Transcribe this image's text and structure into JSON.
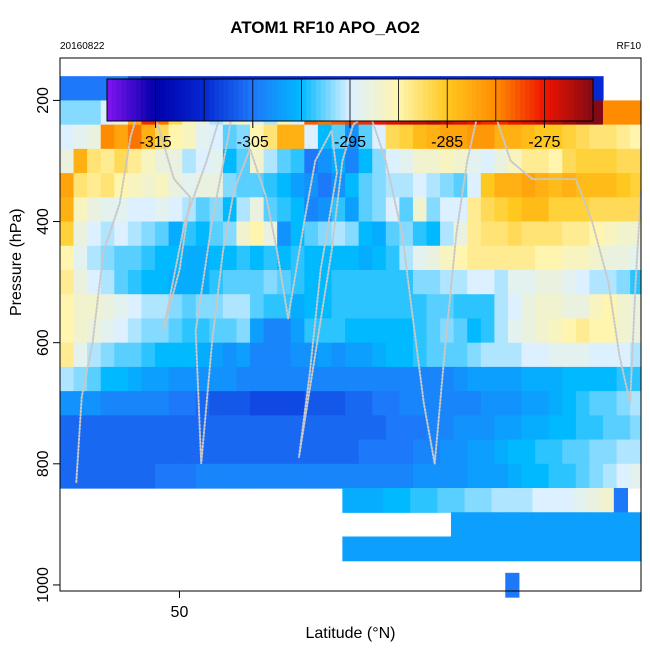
{
  "chart_data": {
    "type": "heatmap",
    "title": "ATOM1 RF10 APO_AO2",
    "date": "20160822",
    "flight": "RF10",
    "xlabel": "Latitude (°N)",
    "ylabel": "Pressure (hPa)",
    "xlim": [
      47.8,
      58.5
    ],
    "ylim": [
      1010,
      130
    ],
    "x_ticks": [
      50
    ],
    "x_tick_labels": [
      "50"
    ],
    "y_ticks": [
      200,
      400,
      600,
      800,
      1000
    ],
    "y_tick_labels": [
      "200",
      "400",
      "600",
      "800",
      "1000"
    ],
    "grid": false,
    "colorbar": {
      "range": [
        -320,
        -270
      ],
      "ticks": [
        -315,
        -305,
        -295,
        -285,
        -275
      ],
      "tick_labels": [
        "-315",
        "-305",
        "-295",
        "-285",
        "-275"
      ],
      "placement": "top-inside"
    },
    "cell_width_deg": 0.25,
    "cell_height_hpa": 40,
    "strips": [
      {
        "p": 180,
        "lat_start": 47.8,
        "values": [
          -305,
          -305,
          -305,
          -305,
          -305,
          -308,
          -310,
          -310,
          -310,
          -310,
          -310,
          -310,
          -310,
          -310,
          -310,
          -310,
          -310,
          -310,
          -310,
          -310,
          -310,
          -310,
          -310,
          -310,
          -310,
          -310,
          -310,
          -310,
          -310,
          -310,
          -310,
          -310,
          -310,
          -310,
          -310,
          -310,
          -310,
          -310,
          -310,
          -310
        ]
      },
      {
        "p": 220,
        "lat_start": 47.8,
        "values": [
          -297,
          -297,
          -297,
          -295,
          -293,
          -283,
          -276,
          -279,
          -287,
          -291,
          -293,
          -296,
          -293,
          -291,
          -294,
          -296,
          -291,
          -295,
          -278,
          -279,
          -278,
          -277,
          -276,
          -275,
          -274,
          -273,
          -273,
          -272,
          -273,
          -274,
          -275,
          -276,
          -276,
          -275,
          -274,
          -273,
          -272,
          -271,
          -270,
          -270,
          -280,
          -280,
          -280,
          -280,
          -280,
          -280,
          -280,
          -280,
          -280,
          -280
        ]
      },
      {
        "p": 260,
        "lat_start": 47.8,
        "values": [
          -295,
          -294,
          -293,
          -280,
          -282,
          -279,
          -283,
          -287,
          -290,
          -291,
          -294,
          -295,
          -298,
          -297,
          -290,
          -288,
          -283,
          -283,
          -295,
          -300,
          -298,
          -303,
          -298,
          -295,
          -287,
          -286,
          -284,
          -283,
          -282,
          -282,
          -281,
          -281,
          -283,
          -283,
          -284,
          -285,
          -285,
          -286,
          -287,
          -288,
          -288,
          -289,
          -290,
          -291,
          -292
        ]
      },
      {
        "p": 300,
        "lat_start": 47.8,
        "values": [
          -293,
          -283,
          -288,
          -289,
          -287,
          -289,
          -291,
          -293,
          -293,
          -296,
          -295,
          -294,
          -300,
          -298,
          -292,
          -296,
          -298,
          -299,
          -305,
          -303,
          -301,
          -304,
          -300,
          -297,
          -295,
          -294,
          -292,
          -292,
          -291,
          -292,
          -294,
          -295,
          -293,
          -291,
          -289,
          -289,
          -290,
          -287,
          -286,
          -286,
          -286,
          -287,
          -287,
          -289,
          -288
        ]
      },
      {
        "p": 340,
        "lat_start": 47.8,
        "values": [
          -282,
          -288,
          -289,
          -288,
          -290,
          -291,
          -292,
          -291,
          -293,
          -294,
          -293,
          -293,
          -297,
          -298,
          -298,
          -299,
          -300,
          -302,
          -303,
          -305,
          -303,
          -300,
          -298,
          -297,
          -296,
          -296,
          -295,
          -296,
          -297,
          -298,
          -295,
          -285,
          -283,
          -283,
          -282,
          -283,
          -284,
          -283,
          -284,
          -284,
          -284,
          -285,
          -286,
          -286,
          -286
        ]
      },
      {
        "p": 380,
        "lat_start": 47.8,
        "values": [
          -283,
          -291,
          -293,
          -294,
          -294,
          -295,
          -295,
          -294,
          -295,
          -296,
          -298,
          -297,
          -300,
          -296,
          -293,
          -298,
          -299,
          -300,
          -304,
          -303,
          -299,
          -302,
          -298,
          -297,
          -295,
          -298,
          -292,
          -297,
          -295,
          -295,
          -289,
          -287,
          -286,
          -285,
          -284,
          -284,
          -286,
          -286,
          -286,
          -287,
          -287,
          -287,
          -287,
          -288,
          -287
        ]
      },
      {
        "p": 420,
        "lat_start": 47.8,
        "values": [
          -286,
          -293,
          -295,
          -296,
          -295,
          -296,
          -297,
          -298,
          -301,
          -299,
          -300,
          -298,
          -297,
          -292,
          -290,
          -293,
          -303,
          -300,
          -298,
          -297,
          -296,
          -297,
          -300,
          -301,
          -298,
          -297,
          -299,
          -300,
          -296,
          -293,
          -289,
          -288,
          -288,
          -287,
          -288,
          -288,
          -288,
          -289,
          -289,
          -290,
          -291,
          -292,
          -292,
          -293,
          -300
        ]
      },
      {
        "p": 460,
        "lat_start": 47.8,
        "values": [
          -290,
          -294,
          -296,
          -297,
          -298,
          -298,
          -299,
          -300,
          -300,
          -301,
          -301,
          -300,
          -300,
          -299,
          -300,
          -299,
          -300,
          -299,
          -300,
          -300,
          -300,
          -300,
          -301,
          -300,
          -299,
          -296,
          -294,
          -293,
          -291,
          -290,
          -289,
          -289,
          -289,
          -289,
          -289,
          -290,
          -290,
          -291,
          -291,
          -292,
          -293,
          -293,
          -294,
          -295,
          -290
        ]
      },
      {
        "p": 500,
        "lat_start": 47.8,
        "values": [
          -289,
          -293,
          -295,
          -296,
          -298,
          -299,
          -300,
          -300,
          -301,
          -301,
          -301,
          -299,
          -298,
          -298,
          -298,
          -297,
          -298,
          -299,
          -300,
          -300,
          -299,
          -299,
          -299,
          -299,
          -299,
          -299,
          -297,
          -297,
          -296,
          -296,
          -295,
          -295,
          -296,
          -294,
          -294,
          -293,
          -293,
          -294,
          -295,
          -296,
          -296,
          -297,
          -299,
          -300,
          -292
        ]
      },
      {
        "p": 540,
        "lat_start": 47.8,
        "values": [
          -290,
          -292,
          -292,
          -293,
          -294,
          -295,
          -296,
          -296,
          -297,
          -298,
          -297,
          -297,
          -296,
          -296,
          -298,
          -299,
          -299,
          -301,
          -300,
          -300,
          -299,
          -299,
          -299,
          -299,
          -299,
          -299,
          -299,
          -298,
          -298,
          -299,
          -299,
          -299,
          -296,
          -295,
          -293,
          -292,
          -292,
          -293,
          -293,
          -291,
          -290,
          -292,
          -293,
          -294,
          -296
        ]
      },
      {
        "p": 580,
        "lat_start": 47.8,
        "values": [
          -290,
          -292,
          -293,
          -294,
          -295,
          -296,
          -297,
          -297,
          -298,
          -299,
          -299,
          -298,
          -298,
          -297,
          -302,
          -304,
          -304,
          -302,
          -299,
          -299,
          -299,
          -300,
          -300,
          -300,
          -300,
          -300,
          -299,
          -298,
          -297,
          -298,
          -300,
          -299,
          -296,
          -294,
          -293,
          -292,
          -291,
          -290,
          -289,
          -290,
          -290,
          -292,
          -293,
          -295,
          -296
        ]
      },
      {
        "p": 620,
        "lat_start": 47.8,
        "values": [
          -289,
          -294,
          -296,
          -297,
          -298,
          -298,
          -299,
          -300,
          -300,
          -300,
          -301,
          -302,
          -303,
          -302,
          -304,
          -304,
          -304,
          -303,
          -303,
          -302,
          -303,
          -302,
          -302,
          -301,
          -300,
          -300,
          -299,
          -298,
          -298,
          -298,
          -297,
          -296,
          -296,
          -296,
          -295,
          -295,
          -294,
          -294,
          -294,
          -295,
          -295,
          -295,
          -296,
          -300,
          -302
        ]
      },
      {
        "p": 660,
        "lat_start": 47.8,
        "values": [
          -296,
          -297,
          -298,
          -300,
          -300,
          -301,
          -302,
          -302,
          -303,
          -303,
          -303,
          -303,
          -303,
          -304,
          -304,
          -304,
          -304,
          -304,
          -304,
          -304,
          -304,
          -304,
          -304,
          -304,
          -304,
          -304,
          -304,
          -304,
          -304,
          -303,
          -302,
          -302,
          -302,
          -302,
          -301,
          -301,
          -301,
          -300,
          -300,
          -300,
          -300,
          -299,
          -299,
          -303,
          -310
        ]
      },
      {
        "p": 700,
        "lat_start": 47.8,
        "values": [
          -303,
          -303,
          -303,
          -304,
          -304,
          -304,
          -304,
          -304,
          -305,
          -305,
          -306,
          -307,
          -307,
          -307,
          -308,
          -308,
          -308,
          -308,
          -307,
          -307,
          -307,
          -306,
          -306,
          -305,
          -305,
          -304,
          -304,
          -304,
          -304,
          -304,
          -304,
          -303,
          -303,
          -303,
          -302,
          -302,
          -301,
          -300,
          -299,
          -298,
          -298,
          -297,
          -296,
          -304,
          -318
        ]
      },
      {
        "p": 740,
        "lat_start": 47.8,
        "values": [
          -306,
          -306,
          -306,
          -306,
          -306,
          -306,
          -306,
          -306,
          -306,
          -306,
          -306,
          -306,
          -306,
          -306,
          -306,
          -306,
          -306,
          -306,
          -306,
          -306,
          -306,
          -306,
          -306,
          -306,
          -305,
          -305,
          -305,
          -304,
          -304,
          -303,
          -303,
          -303,
          -302,
          -302,
          -301,
          -301,
          -300,
          -300,
          -299,
          -299,
          -298,
          -298,
          -297,
          -304,
          -310
        ]
      },
      {
        "p": 780,
        "lat_start": 47.8,
        "values": [
          -306,
          -306,
          -306,
          -306,
          -306,
          -306,
          -306,
          -306,
          -306,
          -306,
          -306,
          -306,
          -306,
          -306,
          -306,
          -306,
          -306,
          -306,
          -306,
          -306,
          -306,
          -306,
          -305,
          -305,
          -305,
          -305,
          -304,
          -304,
          -303,
          -303,
          -302,
          -302,
          -301,
          -300,
          -300,
          -299,
          -299,
          -298,
          -298,
          -297,
          -297,
          -296,
          -296,
          -303,
          -308
        ]
      },
      {
        "p": 820,
        "lat_start": 47.8,
        "values": [
          -306,
          -306,
          -306,
          -306,
          -306,
          -306,
          -306,
          -305,
          -305,
          -305,
          -304,
          -304,
          -304,
          -304,
          -304,
          -304,
          -304,
          -304,
          -304,
          -304,
          -304,
          -304,
          -304,
          -304,
          -304,
          -304,
          -303,
          -303,
          -303,
          -303,
          -302,
          -302,
          -302,
          -301,
          -300,
          -300,
          -299,
          -299,
          -298,
          -297,
          -296,
          -295,
          -294,
          -298,
          -306
        ]
      },
      {
        "p": 860,
        "lat_start": 53.0,
        "values": [
          -301,
          -301,
          -301,
          -300,
          -300,
          -299,
          -299,
          -298,
          -298,
          -297,
          -297,
          -296,
          -296,
          -296,
          -295,
          -295,
          -295,
          -294,
          -293,
          -292,
          -305
        ]
      },
      {
        "p": 900,
        "lat_start": 55.0,
        "values": [
          -302,
          -302,
          -302,
          -302,
          -302,
          -302,
          -302,
          -302,
          -302,
          -302,
          -302,
          -302,
          -302,
          -302,
          -302,
          -302,
          -302,
          -302,
          -302,
          -302,
          -302,
          -302
        ]
      },
      {
        "p": 940,
        "lat_start": 53.0,
        "values": [
          -302,
          -302,
          -302,
          -302,
          -302,
          -302,
          -302,
          -302,
          -302,
          -302,
          -302,
          -302,
          -302,
          -302,
          -302,
          -302,
          -302,
          -302,
          -302,
          -302,
          -302,
          -302,
          -302,
          -302
        ]
      },
      {
        "p": 1000,
        "lat_start": 56.0,
        "values": [
          -305
        ]
      }
    ],
    "flight_track": [
      [
        48.1,
        830
      ],
      [
        48.2,
        690
      ],
      [
        48.4,
        600
      ],
      [
        48.6,
        450
      ],
      [
        48.9,
        370
      ],
      [
        49.1,
        260
      ],
      [
        49.3,
        200
      ],
      [
        49.6,
        240
      ],
      [
        49.9,
        330
      ],
      [
        50.2,
        360
      ],
      [
        50.0,
        480
      ],
      [
        49.7,
        580
      ],
      [
        50.1,
        400
      ],
      [
        50.5,
        300
      ],
      [
        50.8,
        210
      ],
      [
        51.0,
        200
      ],
      [
        50.9,
        260
      ],
      [
        50.6,
        400
      ],
      [
        50.3,
        580
      ],
      [
        50.4,
        800
      ],
      [
        50.6,
        600
      ],
      [
        50.8,
        450
      ],
      [
        51.0,
        350
      ],
      [
        51.3,
        280
      ],
      [
        51.6,
        360
      ],
      [
        51.8,
        450
      ],
      [
        52.0,
        560
      ],
      [
        52.3,
        400
      ],
      [
        52.5,
        300
      ],
      [
        52.8,
        250
      ],
      [
        52.9,
        320
      ],
      [
        52.6,
        480
      ],
      [
        52.4,
        650
      ],
      [
        52.2,
        790
      ],
      [
        52.5,
        620
      ],
      [
        52.8,
        450
      ],
      [
        53.0,
        300
      ],
      [
        53.2,
        240
      ],
      [
        53.5,
        220
      ],
      [
        53.8,
        300
      ],
      [
        54.1,
        420
      ],
      [
        54.3,
        560
      ],
      [
        54.5,
        700
      ],
      [
        54.7,
        800
      ],
      [
        54.9,
        600
      ],
      [
        55.1,
        420
      ],
      [
        55.3,
        300
      ],
      [
        55.5,
        220
      ],
      [
        55.8,
        220
      ],
      [
        56.1,
        300
      ],
      [
        56.5,
        330
      ],
      [
        56.9,
        330
      ],
      [
        57.3,
        330
      ],
      [
        57.6,
        400
      ],
      [
        57.9,
        500
      ],
      [
        58.1,
        620
      ],
      [
        58.3,
        700
      ],
      [
        58.4,
        500
      ],
      [
        58.5,
        350
      ]
    ]
  }
}
